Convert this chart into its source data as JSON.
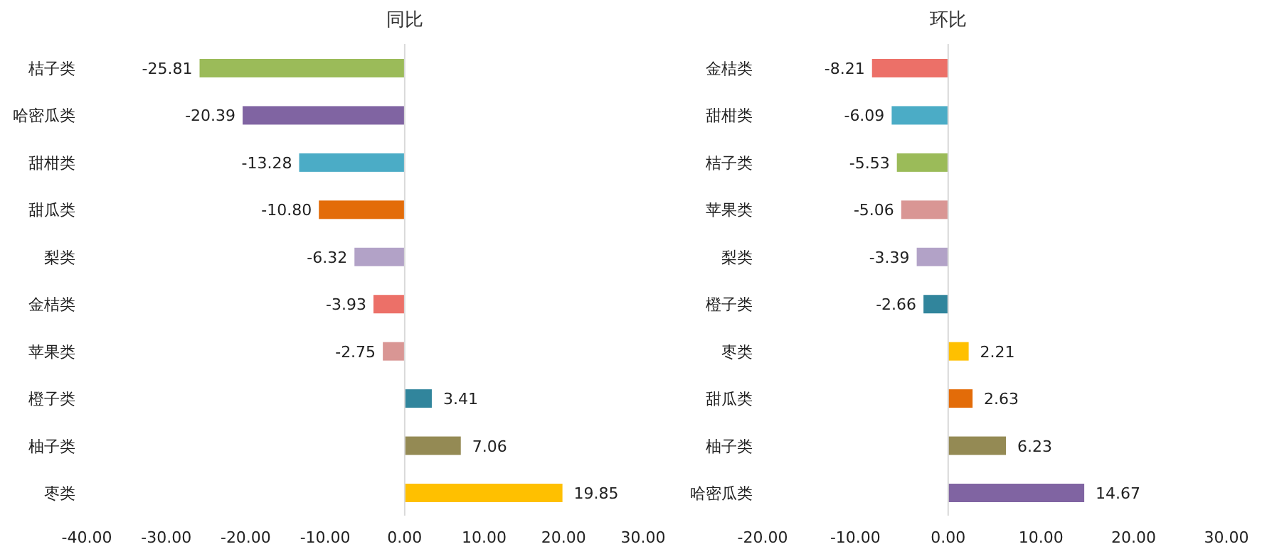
{
  "chart_data": [
    {
      "type": "bar",
      "orientation": "horizontal",
      "title": "同比",
      "categories": [
        "桔子类",
        "哈密瓜类",
        "甜柑类",
        "甜瓜类",
        "梨类",
        "金桔类",
        "苹果类",
        "橙子类",
        "柚子类",
        "枣类"
      ],
      "values": [
        -25.81,
        -20.39,
        -13.28,
        -10.8,
        -6.32,
        -3.93,
        -2.75,
        3.41,
        7.06,
        19.85
      ],
      "value_labels": [
        "-25.81",
        "-20.39",
        "-13.28",
        "-10.80",
        "-6.32",
        "-3.93",
        "-2.75",
        "3.41",
        "7.06",
        "19.85"
      ],
      "colors": [
        "#9bbb59",
        "#8064a2",
        "#4bacc6",
        "#e36c09",
        "#b2a2c7",
        "#ec7068",
        "#d99694",
        "#31859c",
        "#948a54",
        "#ffc000"
      ],
      "xlim": [
        -40,
        30
      ],
      "xticks": [
        {
          "value": -40,
          "label": "-40.00"
        },
        {
          "value": -30,
          "label": "-30.00"
        },
        {
          "value": -20,
          "label": "-20.00"
        },
        {
          "value": -10,
          "label": "-10.00"
        },
        {
          "value": 0,
          "label": "0.00"
        },
        {
          "value": 10,
          "label": "10.00"
        },
        {
          "value": 20,
          "label": "20.00"
        },
        {
          "value": 30,
          "label": "30.00"
        }
      ]
    },
    {
      "type": "bar",
      "orientation": "horizontal",
      "title": "环比",
      "categories": [
        "金桔类",
        "甜柑类",
        "桔子类",
        "苹果类",
        "梨类",
        "橙子类",
        "枣类",
        "甜瓜类",
        "柚子类",
        "哈密瓜类"
      ],
      "values": [
        -8.21,
        -6.09,
        -5.53,
        -5.06,
        -3.39,
        -2.66,
        2.21,
        2.63,
        6.23,
        14.67
      ],
      "value_labels": [
        "-8.21",
        "-6.09",
        "-5.53",
        "-5.06",
        "-3.39",
        "-2.66",
        "2.21",
        "2.63",
        "6.23",
        "14.67"
      ],
      "colors": [
        "#ec7068",
        "#4bacc6",
        "#9bbb59",
        "#d99694",
        "#b2a2c7",
        "#31859c",
        "#ffc000",
        "#e36c09",
        "#948a54",
        "#8064a2"
      ],
      "xlim": [
        -20,
        30
      ],
      "xticks": [
        {
          "value": -20,
          "label": "-20.00"
        },
        {
          "value": -10,
          "label": "-10.00"
        },
        {
          "value": 0,
          "label": "0.00"
        },
        {
          "value": 10,
          "label": "10.00"
        },
        {
          "value": 20,
          "label": "20.00"
        },
        {
          "value": 30,
          "label": "30.00"
        }
      ]
    }
  ]
}
